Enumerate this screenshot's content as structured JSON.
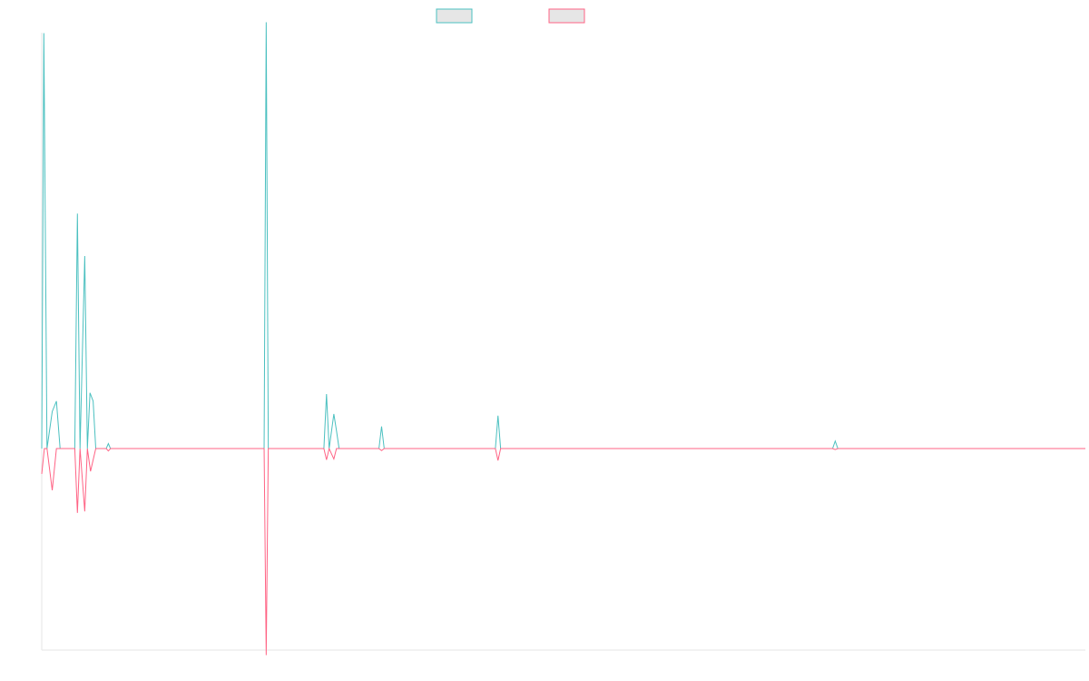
{
  "chart_data": {
    "type": "line",
    "title": "",
    "xlabel": "",
    "ylabel": "",
    "grid": false,
    "legend": {
      "placement": "top-center",
      "labels_visible": false
    },
    "colors": {
      "series_a": "#4bc0c0",
      "series_b": "#ff6384",
      "axis": "#e5e5e5",
      "legend_fill": "#e6e6e6"
    },
    "xlim": [
      0,
      199
    ],
    "ylim": [
      -1,
      1
    ],
    "series": [
      {
        "key": "series_a",
        "points": [
          [
            0,
            0
          ],
          [
            0.4,
            0.999
          ],
          [
            1,
            0
          ],
          [
            2,
            0.089
          ],
          [
            2.8,
            0.114
          ],
          [
            3.5,
            0
          ],
          [
            6.3,
            0
          ],
          [
            6.8,
            0.565
          ],
          [
            7.3,
            0
          ],
          [
            8.2,
            0.463
          ],
          [
            8.7,
            0
          ],
          [
            9.2,
            0.134
          ],
          [
            9.8,
            0.114
          ],
          [
            10.3,
            0
          ],
          [
            12.3,
            0
          ],
          [
            12.7,
            0.012
          ],
          [
            13.1,
            0
          ],
          [
            42.4,
            0
          ],
          [
            42.8,
            1.025
          ],
          [
            43.2,
            0
          ],
          [
            53.8,
            0
          ],
          [
            54.3,
            0.131
          ],
          [
            54.8,
            0
          ],
          [
            55.7,
            0.083
          ],
          [
            56.2,
            0.043
          ],
          [
            56.7,
            0
          ],
          [
            57.3,
            0
          ],
          [
            64.3,
            0
          ],
          [
            64.8,
            0.053
          ],
          [
            65.3,
            0
          ],
          [
            86.5,
            0
          ],
          [
            87,
            0.079
          ],
          [
            87.5,
            0
          ],
          [
            150.8,
            0
          ],
          [
            151.3,
            0.018
          ],
          [
            151.8,
            0
          ],
          [
            199,
            0
          ]
        ]
      },
      {
        "key": "series_b",
        "points": [
          [
            0,
            -0.126
          ],
          [
            0.5,
            0
          ],
          [
            1,
            0
          ],
          [
            2,
            -0.207
          ],
          [
            2.8,
            0
          ],
          [
            3.5,
            0
          ],
          [
            6.3,
            0
          ],
          [
            6.8,
            -0.319
          ],
          [
            7.3,
            0
          ],
          [
            8.2,
            -0.312
          ],
          [
            8.7,
            0
          ],
          [
            9.3,
            -0.113
          ],
          [
            10.3,
            0
          ],
          [
            12.3,
            0
          ],
          [
            12.7,
            -0.012
          ],
          [
            13.1,
            0
          ],
          [
            42.4,
            0
          ],
          [
            42.8,
            -1.025
          ],
          [
            43.2,
            0
          ],
          [
            53.8,
            0
          ],
          [
            54.3,
            -0.056
          ],
          [
            54.8,
            0
          ],
          [
            55.7,
            -0.052
          ],
          [
            56.2,
            0
          ],
          [
            57.3,
            0
          ],
          [
            64.3,
            0
          ],
          [
            64.8,
            -0.01
          ],
          [
            65.3,
            0
          ],
          [
            86.5,
            0
          ],
          [
            87,
            -0.059
          ],
          [
            87.5,
            0
          ],
          [
            150.8,
            0
          ],
          [
            151.3,
            -0.005
          ],
          [
            151.8,
            0
          ],
          [
            199,
            0
          ]
        ]
      }
    ]
  }
}
